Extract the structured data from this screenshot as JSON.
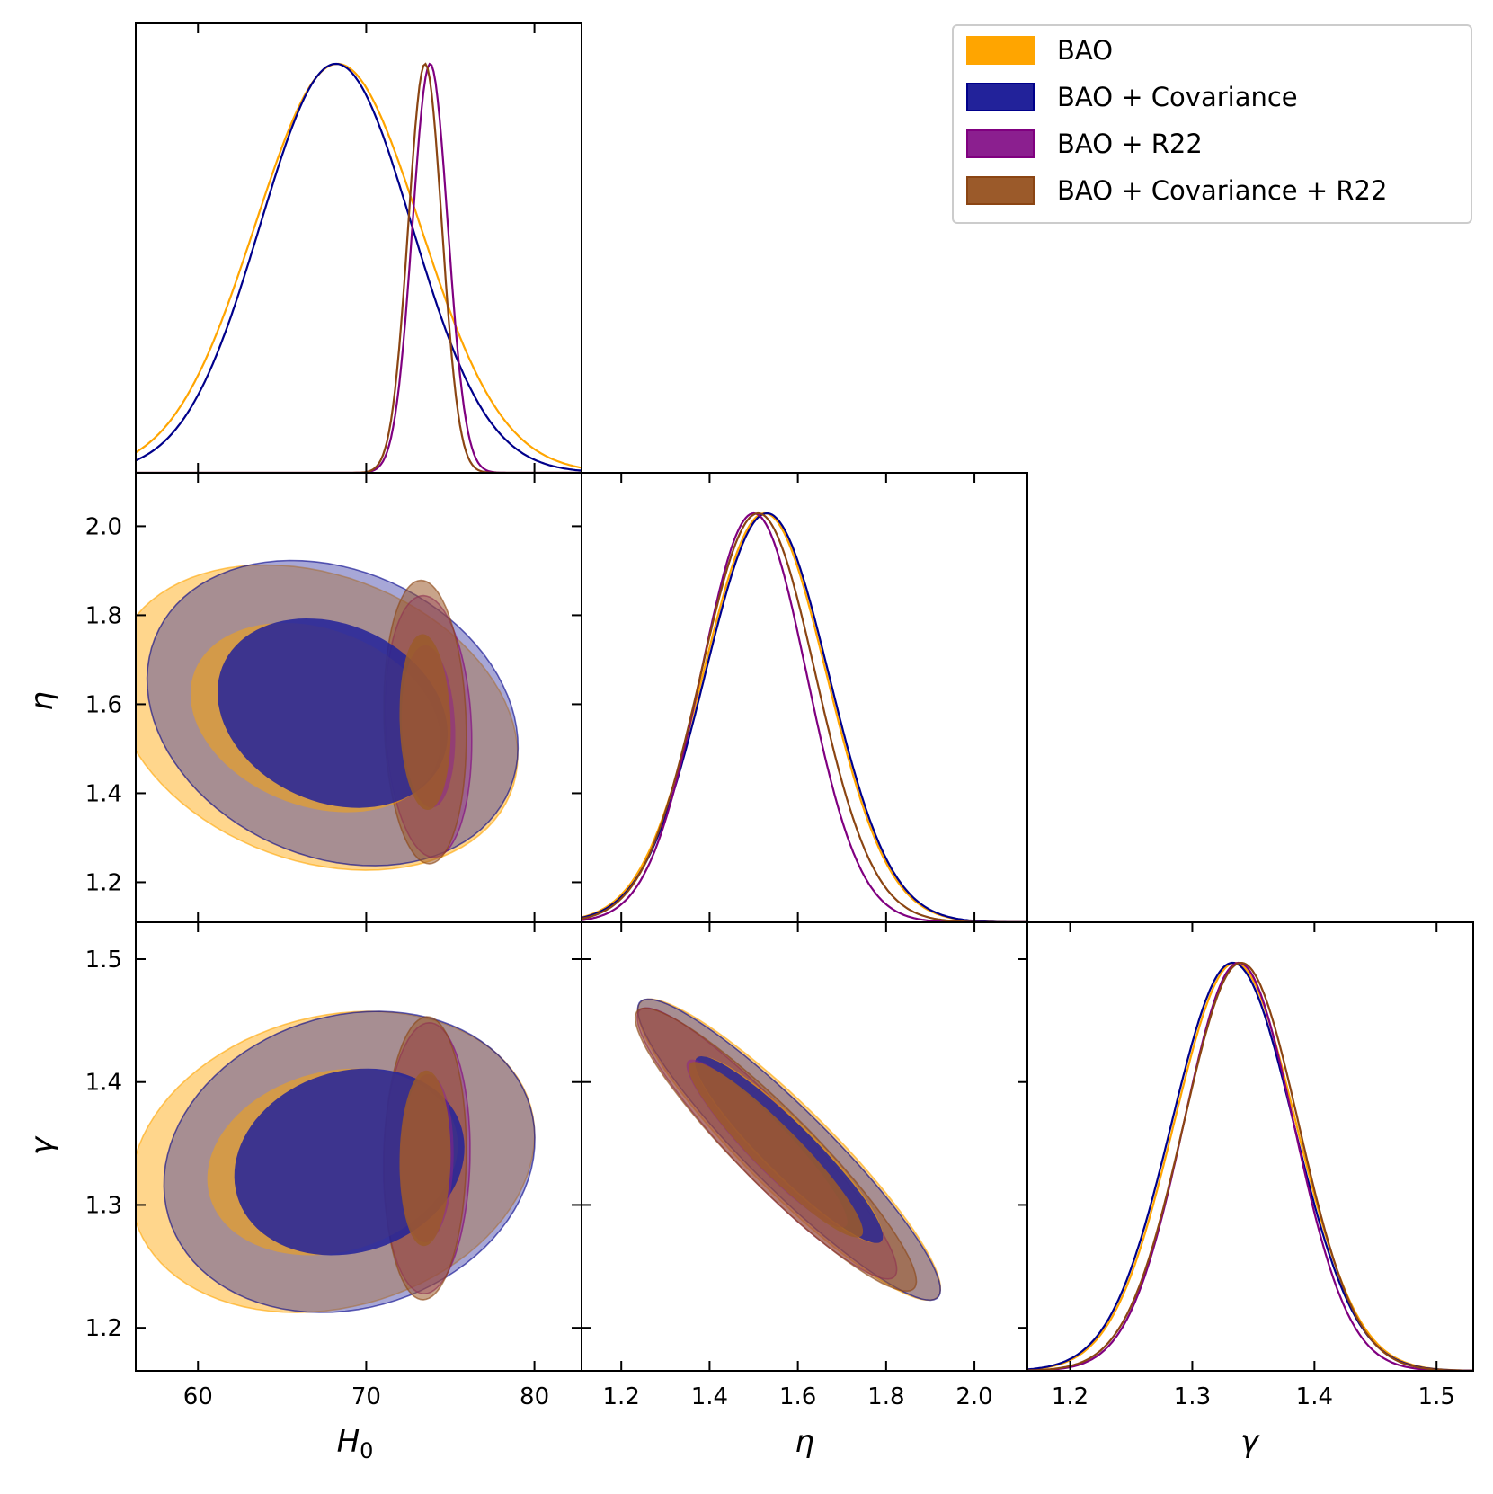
{
  "chart_data": {
    "type": "corner",
    "title": "",
    "parameters": [
      {
        "key": "H0",
        "label": "H",
        "subscript": "0",
        "range": [
          56.3,
          82.8
        ],
        "ticks": [
          60,
          70,
          80
        ],
        "tick_labels": [
          "60",
          "70",
          "80"
        ]
      },
      {
        "key": "eta",
        "label": "η",
        "range": [
          1.11,
          2.12
        ],
        "ticks": [
          1.2,
          1.4,
          1.6,
          1.8,
          2.0
        ],
        "tick_labels": [
          "1.2",
          "1.4",
          "1.6",
          "1.8",
          "2.0"
        ]
      },
      {
        "key": "gamma",
        "label": "γ",
        "range": [
          1.165,
          1.53
        ],
        "ticks": [
          1.2,
          1.3,
          1.4,
          1.5
        ],
        "tick_labels": [
          "1.2",
          "1.3",
          "1.4",
          "1.5"
        ]
      }
    ],
    "legend": {
      "position": "top-right"
    },
    "series": [
      {
        "name": "BAO",
        "color": "#FFA500",
        "line_color": "#FFA500",
        "mean": {
          "H0": 68.3,
          "eta": 1.525,
          "gamma": 1.335
        },
        "sigma": {
          "H0": 4.9,
          "eta": 0.14,
          "gamma": 0.05
        },
        "corr": {
          "H0_eta": -0.25,
          "H0_gamma": 0.18,
          "eta_gamma": -0.92
        },
        "pair_centers": {
          "H0_eta": [
            67.0,
            1.57
          ],
          "H0_gamma": [
            68.0,
            1.335
          ],
          "eta_gamma": [
            1.58,
            1.345
          ]
        },
        "alpha_outer": 0.45,
        "alpha_inner": 0.5
      },
      {
        "name": "BAO + Covariance",
        "color": "#22229A",
        "line_color": "#00008B",
        "mean": {
          "H0": 68.2,
          "eta": 1.53,
          "gamma": 1.333
        },
        "sigma": {
          "H0": 4.5,
          "eta": 0.14,
          "gamma": 0.05
        },
        "corr": {
          "H0_eta": -0.22,
          "H0_gamma": 0.15,
          "eta_gamma": -0.93
        },
        "pair_centers": {
          "H0_eta": [
            68.0,
            1.58
          ],
          "H0_gamma": [
            69.0,
            1.335
          ],
          "eta_gamma": [
            1.58,
            1.345
          ]
        },
        "alpha_outer": 0.4,
        "alpha_inner": 0.85
      },
      {
        "name": "BAO + R22",
        "color": "#8B1F8F",
        "line_color": "#800080",
        "mean": {
          "H0": 73.8,
          "eta": 1.5,
          "gamma": 1.338
        },
        "sigma": {
          "H0": 1.05,
          "eta": 0.12,
          "gamma": 0.045
        },
        "corr": {
          "H0_eta": -0.12,
          "H0_gamma": 0.06,
          "eta_gamma": -0.93
        },
        "pair_centers": {
          "H0_eta": [
            73.7,
            1.55
          ],
          "H0_gamma": [
            73.6,
            1.338
          ],
          "eta_gamma": [
            1.53,
            1.35
          ]
        },
        "alpha_outer": 0.4,
        "alpha_inner": 0.5
      },
      {
        "name": "BAO + Covariance + R22",
        "color": "#9B5A2A",
        "line_color": "#8B4513",
        "mean": {
          "H0": 73.5,
          "eta": 1.51,
          "gamma": 1.34
        },
        "sigma": {
          "H0": 1.0,
          "eta": 0.13,
          "gamma": 0.047
        },
        "corr": {
          "H0_eta": -0.1,
          "H0_gamma": 0.05,
          "eta_gamma": -0.93
        },
        "pair_centers": {
          "H0_eta": [
            73.5,
            1.56
          ],
          "H0_gamma": [
            73.5,
            1.338
          ],
          "eta_gamma": [
            1.55,
            1.345
          ]
        },
        "alpha_outer": 0.55,
        "alpha_inner": 0.85
      }
    ]
  }
}
